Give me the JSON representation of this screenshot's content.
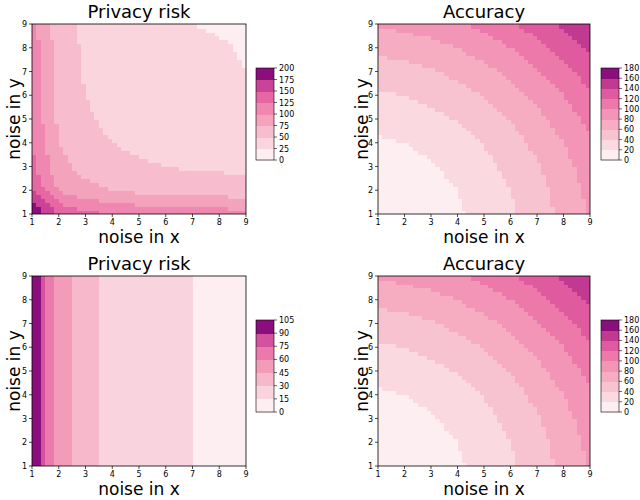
{
  "chart_data": [
    {
      "type": "contour",
      "title": "Privacy risk",
      "x_label": "noise in x",
      "y_label": "noise in y",
      "x": [
        1,
        2,
        3,
        4,
        5,
        6,
        7,
        8,
        9
      ],
      "y": [
        1,
        2,
        3,
        4,
        5,
        6,
        7,
        8,
        9
      ],
      "z": [
        [
          200,
          150,
          133,
          125,
          120,
          117,
          114,
          113,
          111
        ],
        [
          150,
          100,
          83,
          75,
          70,
          67,
          64,
          63,
          61
        ],
        [
          133,
          83,
          66,
          58,
          53,
          50,
          47,
          46,
          44
        ],
        [
          125,
          75,
          58,
          50,
          45,
          42,
          39,
          38,
          36
        ],
        [
          120,
          70,
          53,
          45,
          40,
          37,
          34,
          33,
          31
        ],
        [
          117,
          67,
          50,
          42,
          37,
          34,
          31,
          30,
          28
        ],
        [
          114,
          64,
          47,
          39,
          34,
          31,
          28,
          27,
          25
        ],
        [
          113,
          63,
          46,
          38,
          33,
          30,
          27,
          26,
          24
        ],
        [
          111,
          61,
          44,
          36,
          31,
          28,
          25,
          24,
          22
        ]
      ],
      "xlim": [
        1,
        9
      ],
      "ylim": [
        1,
        9
      ],
      "xticks": [
        1,
        2,
        3,
        4,
        5,
        6,
        7,
        8,
        9
      ],
      "yticks": [
        1,
        2,
        3,
        4,
        5,
        6,
        7,
        8,
        9
      ],
      "colorbar_range": [
        0,
        200
      ],
      "colorbar_ticks": [
        0,
        25,
        50,
        75,
        100,
        125,
        150,
        175,
        200
      ],
      "colors": [
        "#fdeef1",
        "#fad5de",
        "#f7bccd",
        "#f4a3bd",
        "#f087b1",
        "#e667a4",
        "#ca4396",
        "#8a0f7c"
      ]
    },
    {
      "type": "contour",
      "title": "Accuracy",
      "x_label": "noise in x",
      "y_label": "noise in y",
      "x": [
        1,
        2,
        3,
        4,
        5,
        6,
        7,
        8,
        9
      ],
      "y": [
        1,
        2,
        3,
        4,
        5,
        6,
        7,
        8,
        9
      ],
      "z": [
        [
          2,
          5,
          10,
          17,
          26,
          37,
          50,
          65,
          82
        ],
        [
          5,
          8,
          13,
          20,
          29,
          40,
          53,
          68,
          85
        ],
        [
          10,
          13,
          18,
          25,
          34,
          45,
          58,
          73,
          90
        ],
        [
          17,
          20,
          25,
          32,
          41,
          52,
          65,
          80,
          97
        ],
        [
          26,
          29,
          34,
          41,
          50,
          61,
          74,
          89,
          106
        ],
        [
          37,
          40,
          45,
          52,
          61,
          72,
          85,
          100,
          117
        ],
        [
          50,
          53,
          58,
          65,
          74,
          85,
          98,
          113,
          130
        ],
        [
          65,
          68,
          73,
          80,
          89,
          100,
          113,
          128,
          145
        ],
        [
          82,
          85,
          90,
          97,
          106,
          117,
          130,
          145,
          162
        ]
      ],
      "xlim": [
        1,
        9
      ],
      "ylim": [
        1,
        9
      ],
      "xticks": [
        1,
        2,
        3,
        4,
        5,
        6,
        7,
        8,
        9
      ],
      "yticks": [
        1,
        2,
        3,
        4,
        5,
        6,
        7,
        8,
        9
      ],
      "colorbar_range": [
        0,
        180
      ],
      "colorbar_ticks": [
        0,
        20,
        40,
        60,
        80,
        100,
        120,
        140,
        160,
        180
      ],
      "colors": [
        "#fdeef1",
        "#fbd9e0",
        "#f8c3d0",
        "#f6adc2",
        "#f395b6",
        "#ed79aa",
        "#df5a9f",
        "#c03a92",
        "#8a0f7c"
      ]
    },
    {
      "type": "contour",
      "title": "Privacy risk",
      "x_label": "noise in x",
      "y_label": "noise in y",
      "x": [
        1,
        2,
        3,
        4,
        5,
        6,
        7,
        8,
        9
      ],
      "y": [
        1,
        2,
        3,
        4,
        5,
        6,
        7,
        8,
        9
      ],
      "z": [
        [
          105,
          53,
          35,
          26,
          21,
          18,
          15,
          13,
          12
        ],
        [
          105,
          53,
          35,
          26,
          21,
          18,
          15,
          13,
          12
        ],
        [
          105,
          53,
          35,
          26,
          21,
          18,
          15,
          13,
          12
        ],
        [
          105,
          53,
          35,
          26,
          21,
          18,
          15,
          13,
          12
        ],
        [
          105,
          53,
          35,
          26,
          21,
          18,
          15,
          13,
          12
        ],
        [
          105,
          53,
          35,
          26,
          21,
          18,
          15,
          13,
          12
        ],
        [
          105,
          53,
          35,
          26,
          21,
          18,
          15,
          13,
          12
        ],
        [
          105,
          53,
          35,
          26,
          21,
          18,
          15,
          13,
          12
        ],
        [
          105,
          53,
          35,
          26,
          21,
          18,
          15,
          13,
          12
        ]
      ],
      "xlim": [
        1,
        9
      ],
      "ylim": [
        1,
        9
      ],
      "xticks": [
        1,
        2,
        3,
        4,
        5,
        6,
        7,
        8,
        9
      ],
      "yticks": [
        1,
        2,
        3,
        4,
        5,
        6,
        7,
        8,
        9
      ],
      "colorbar_range": [
        0,
        105
      ],
      "colorbar_ticks": [
        0,
        15,
        30,
        45,
        60,
        75,
        90,
        105
      ],
      "colors": [
        "#fdeef1",
        "#f9d3dd",
        "#f6b8ca",
        "#f29cb9",
        "#ea7aac",
        "#d2529d",
        "#8a0f7c"
      ]
    },
    {
      "type": "contour",
      "title": "Accuracy",
      "x_label": "noise in x",
      "y_label": "noise in y",
      "x": [
        1,
        2,
        3,
        4,
        5,
        6,
        7,
        8,
        9
      ],
      "y": [
        1,
        2,
        3,
        4,
        5,
        6,
        7,
        8,
        9
      ],
      "z": [
        [
          2,
          5,
          10,
          17,
          26,
          37,
          50,
          65,
          82
        ],
        [
          5,
          8,
          13,
          20,
          29,
          40,
          53,
          68,
          85
        ],
        [
          10,
          13,
          18,
          25,
          34,
          45,
          58,
          73,
          90
        ],
        [
          17,
          20,
          25,
          32,
          41,
          52,
          65,
          80,
          97
        ],
        [
          26,
          29,
          34,
          41,
          50,
          61,
          74,
          89,
          106
        ],
        [
          37,
          40,
          45,
          52,
          61,
          72,
          85,
          100,
          117
        ],
        [
          50,
          53,
          58,
          65,
          74,
          85,
          98,
          113,
          130
        ],
        [
          65,
          68,
          73,
          80,
          89,
          100,
          113,
          128,
          145
        ],
        [
          82,
          85,
          90,
          97,
          106,
          117,
          130,
          145,
          162
        ]
      ],
      "xlim": [
        1,
        9
      ],
      "ylim": [
        1,
        9
      ],
      "xticks": [
        1,
        2,
        3,
        4,
        5,
        6,
        7,
        8,
        9
      ],
      "yticks": [
        1,
        2,
        3,
        4,
        5,
        6,
        7,
        8,
        9
      ],
      "colorbar_range": [
        0,
        180
      ],
      "colorbar_ticks": [
        0,
        20,
        40,
        60,
        80,
        100,
        120,
        140,
        160,
        180
      ],
      "colors": [
        "#fdeef1",
        "#fbd9e0",
        "#f8c3d0",
        "#f6adc2",
        "#f395b6",
        "#ed79aa",
        "#df5a9f",
        "#c03a92",
        "#8a0f7c"
      ]
    }
  ]
}
